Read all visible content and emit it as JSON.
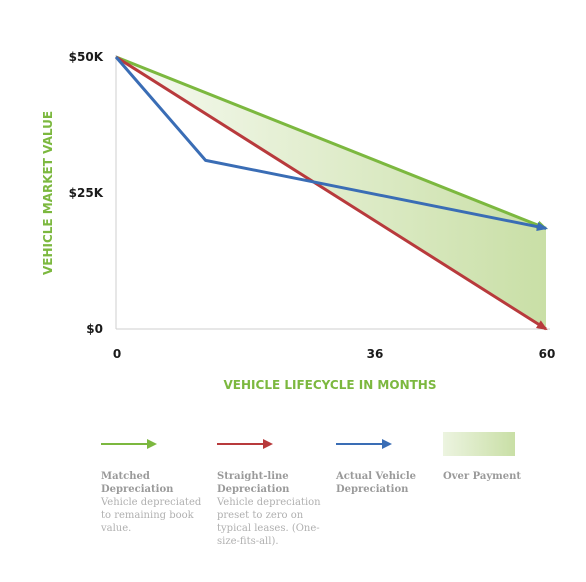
{
  "chart_data": {
    "type": "line",
    "xlabel": "VEHICLE LIFECYCLE IN MONTHS",
    "ylabel": "VEHICLE MARKET VALUE",
    "x_ticks": [
      {
        "value": 0,
        "label": "0"
      },
      {
        "value": 36,
        "label": "36"
      },
      {
        "value": 60,
        "label": "60"
      }
    ],
    "y_ticks": [
      {
        "value": 0,
        "label": "$0"
      },
      {
        "value": 25000,
        "label": "$25K"
      },
      {
        "value": 50000,
        "label": "$50K"
      }
    ],
    "xlim": [
      0,
      60
    ],
    "ylim": [
      0,
      50000
    ],
    "grid": false,
    "series": [
      {
        "name": "Matched Depreciation",
        "color": "#7cb83f",
        "points": [
          [
            0,
            50000
          ],
          [
            60,
            18500
          ]
        ]
      },
      {
        "name": "Straight-line Depreciation",
        "color": "#b83a3c",
        "points": [
          [
            0,
            50000
          ],
          [
            60,
            0
          ]
        ]
      },
      {
        "name": "Actual Vehicle Depreciation",
        "color": "#3a6db5",
        "points": [
          [
            0,
            50000
          ],
          [
            12.5,
            31000
          ],
          [
            60,
            18500
          ]
        ]
      }
    ],
    "area": {
      "name": "Over Payment",
      "color": "#c9dfa6",
      "upper": [
        [
          0,
          50000
        ],
        [
          60,
          18500
        ]
      ],
      "lower": [
        [
          0,
          50000
        ],
        [
          60,
          0
        ]
      ]
    }
  },
  "legend": [
    {
      "title": "Matched Depreciation",
      "desc": "Vehicle depreciated to remaining book value.",
      "color": "#7cb83f",
      "kind": "arrow"
    },
    {
      "title": "Straight-line Depreciation",
      "desc": "Vehicle depreciation preset to zero on typical leases. (One-size-fits-all).",
      "color": "#b83a3c",
      "kind": "arrow"
    },
    {
      "title": "Actual Vehicle Depreciation",
      "desc": "",
      "color": "#3a6db5",
      "kind": "arrow"
    },
    {
      "title": "Over Payment",
      "desc": "",
      "color": "#c9dfa6",
      "kind": "area"
    }
  ],
  "colors": {
    "axis": "#cfcfcf",
    "axis_title": "#7cb83f",
    "tick_text": "#1a1a1a"
  }
}
